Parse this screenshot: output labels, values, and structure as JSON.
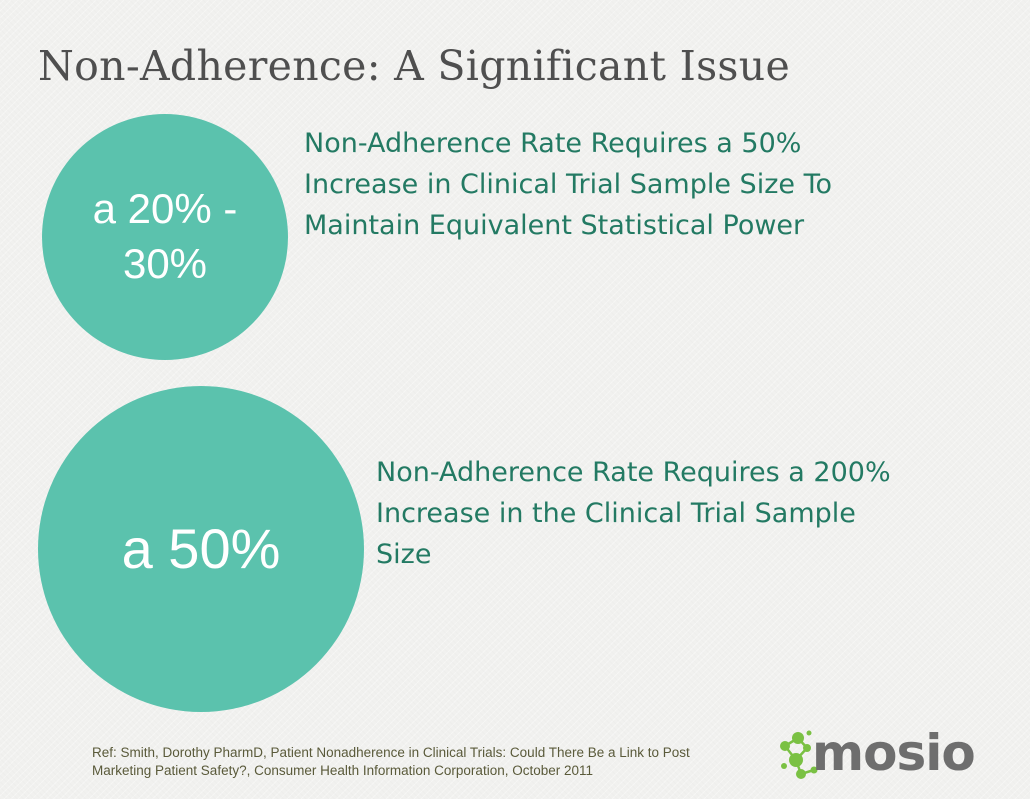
{
  "slide": {
    "title": "Non-Adherence: A Significant Issue"
  },
  "stats": [
    {
      "circle_value": "a 20% - 30%",
      "description": "Non-Adherence Rate Requires a 50% Increase in Clinical Trial Sample Size To Maintain Equivalent Statistical Power"
    },
    {
      "circle_value": "a 50%",
      "description": "Non-Adherence Rate Requires a 200% Increase in the Clinical Trial Sample Size"
    }
  ],
  "footer": {
    "reference": "Ref: Smith, Dorothy PharmD, Patient Nonadherence in Clinical Trials: Could There Be a Link to Post Marketing Patient Safety?, Consumer Health Information Corporation, October 2011"
  },
  "logo": {
    "text": "mosio",
    "icon": "molecule-dots-icon"
  },
  "colors": {
    "background": "#f1f1ef",
    "circle_fill": "#5bc2ad",
    "circle_text": "#ffffff",
    "stat_text": "#237a63",
    "title_text": "#4f4f4f",
    "logo_green": "#7ac143",
    "logo_gray": "#6e6e6e"
  }
}
